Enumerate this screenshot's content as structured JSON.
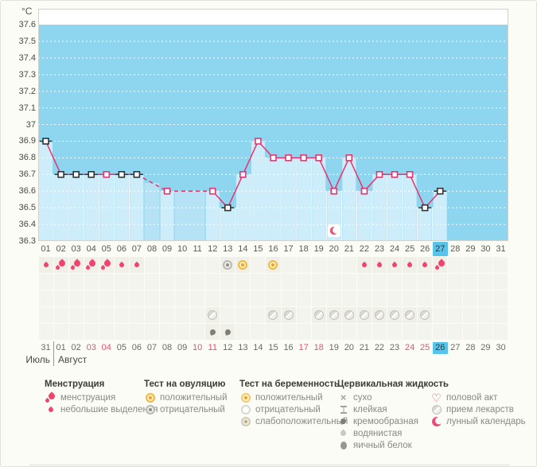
{
  "colors": {
    "chart_bg": "#8ED5EF",
    "bar": "#CDEDFB",
    "bar_interpolated": "#B5E2F4",
    "bar_separator": "#EFF9FE",
    "grid": "#FFFFFF",
    "line": "#E8336E",
    "marker_black": "#333333",
    "selected_bg": "#58C4EA",
    "weekend_text": "#E8506E",
    "accent_pink": "#F0436E",
    "plot_border": "#D2D2CC"
  },
  "chart_data": {
    "type": "line",
    "title": "",
    "xlabel": "",
    "ylabel": "°C",
    "ylim": [
      36.3,
      37.6
    ],
    "ytick_step": 0.1,
    "grid": "dotted-white-horizontal",
    "yticks": [
      "37.6",
      "37.5",
      "37.4",
      "37.3",
      "37.2",
      "37.1",
      "37",
      "36.9",
      "36.8",
      "36.7",
      "36.6",
      "36.5",
      "36.4",
      "36.3"
    ],
    "cycle_days": [
      "01",
      "02",
      "03",
      "04",
      "05",
      "06",
      "07",
      "08",
      "09",
      "10",
      "11",
      "12",
      "13",
      "14",
      "15",
      "16",
      "17",
      "18",
      "19",
      "20",
      "21",
      "22",
      "23",
      "24",
      "25",
      "26",
      "27",
      "28",
      "29",
      "30",
      "31"
    ],
    "selected_cycle_day": "27",
    "temps": [
      {
        "d": 1,
        "t": 36.9,
        "m": "black"
      },
      {
        "d": 2,
        "t": 36.7,
        "m": "black"
      },
      {
        "d": 3,
        "t": 36.7,
        "m": "black"
      },
      {
        "d": 4,
        "t": 36.7,
        "m": "black"
      },
      {
        "d": 5,
        "t": 36.7,
        "m": "pink"
      },
      {
        "d": 6,
        "t": 36.7,
        "m": "black"
      },
      {
        "d": 7,
        "t": 36.7,
        "m": "black"
      },
      {
        "d": 8,
        "t": null,
        "m": null
      },
      {
        "d": 9,
        "t": 36.6,
        "m": "pink"
      },
      {
        "d": 10,
        "t": null,
        "m": null
      },
      {
        "d": 11,
        "t": null,
        "m": null
      },
      {
        "d": 12,
        "t": 36.6,
        "m": "pink"
      },
      {
        "d": 13,
        "t": 36.5,
        "m": "black"
      },
      {
        "d": 14,
        "t": 36.7,
        "m": "pink"
      },
      {
        "d": 15,
        "t": 36.9,
        "m": "pink"
      },
      {
        "d": 16,
        "t": 36.8,
        "m": "pink"
      },
      {
        "d": 17,
        "t": 36.8,
        "m": "pink"
      },
      {
        "d": 18,
        "t": 36.8,
        "m": "pink"
      },
      {
        "d": 19,
        "t": 36.8,
        "m": "pink"
      },
      {
        "d": 20,
        "t": 36.6,
        "m": "pink"
      },
      {
        "d": 21,
        "t": 36.8,
        "m": "pink"
      },
      {
        "d": 22,
        "t": 36.6,
        "m": "pink"
      },
      {
        "d": 23,
        "t": 36.7,
        "m": "pink"
      },
      {
        "d": 24,
        "t": 36.7,
        "m": "pink"
      },
      {
        "d": 25,
        "t": 36.7,
        "m": "pink"
      },
      {
        "d": 26,
        "t": 36.5,
        "m": "black"
      },
      {
        "d": 27,
        "t": 36.6,
        "m": "black"
      },
      {
        "d": 28,
        "t": null,
        "m": null
      },
      {
        "d": 29,
        "t": null,
        "m": null
      },
      {
        "d": 30,
        "t": null,
        "m": null
      },
      {
        "d": 31,
        "t": null,
        "m": null
      }
    ],
    "events": {
      "menstruation_heavy": [
        2,
        3,
        4,
        5,
        27
      ],
      "menstruation_light": [
        1,
        6,
        7,
        22,
        23,
        24,
        25,
        26
      ],
      "ovulation_test_positive": [
        14,
        16
      ],
      "ovulation_test_negative": [
        13
      ],
      "medicine": [
        12,
        16,
        17,
        19,
        20,
        21,
        22,
        23,
        24,
        25,
        26
      ],
      "cervical_creamy": [
        12,
        13
      ],
      "lunar_calendar": [
        20
      ]
    },
    "calendar": {
      "month_left": "Июль",
      "month_right": "Август",
      "dates": [
        {
          "d": "31"
        },
        {
          "d": "01"
        },
        {
          "d": "02"
        },
        {
          "d": "03",
          "wk": true
        },
        {
          "d": "04",
          "wk": true
        },
        {
          "d": "05"
        },
        {
          "d": "06"
        },
        {
          "d": "07"
        },
        {
          "d": "08"
        },
        {
          "d": "09"
        },
        {
          "d": "10",
          "wk": true
        },
        {
          "d": "11",
          "wk": true
        },
        {
          "d": "12"
        },
        {
          "d": "13"
        },
        {
          "d": "14"
        },
        {
          "d": "15"
        },
        {
          "d": "16"
        },
        {
          "d": "17",
          "wk": true
        },
        {
          "d": "18",
          "wk": true
        },
        {
          "d": "19"
        },
        {
          "d": "20"
        },
        {
          "d": "21"
        },
        {
          "d": "22"
        },
        {
          "d": "23"
        },
        {
          "d": "24",
          "wk": true
        },
        {
          "d": "25",
          "wk": true
        },
        {
          "d": "26",
          "sel": true
        },
        {
          "d": "27"
        },
        {
          "d": "28"
        },
        {
          "d": "29"
        },
        {
          "d": "30"
        }
      ]
    }
  },
  "legend": {
    "columns": [
      {
        "header": "Менструация",
        "items": [
          {
            "icon": "drop-big",
            "label": "менструация"
          },
          {
            "icon": "drop-small",
            "label": "небольшие выделения"
          }
        ]
      },
      {
        "header": "Тест на овуляцию",
        "items": [
          {
            "icon": "ovu-pos",
            "label": "положительный"
          },
          {
            "icon": "ovu-neg",
            "label": "отрицательный"
          }
        ]
      },
      {
        "header": "Тест на беременность",
        "items": [
          {
            "icon": "preg-pos",
            "label": "положительный"
          },
          {
            "icon": "preg-neg",
            "label": "отрицательный"
          },
          {
            "icon": "preg-weak",
            "label": "слабоположительный"
          }
        ]
      },
      {
        "header": "Цервикальная жидкость",
        "items": [
          {
            "icon": "dry",
            "label": "сухо"
          },
          {
            "icon": "sticky",
            "label": "клейкая"
          },
          {
            "icon": "creamy",
            "label": "кремообразная"
          },
          {
            "icon": "watery",
            "label": "водянистая"
          },
          {
            "icon": "eggwhite",
            "label": "яичный белок"
          }
        ]
      },
      {
        "header": "",
        "items": [
          {
            "icon": "heart",
            "label": "половой акт"
          },
          {
            "icon": "pill",
            "label": "прием лекарств"
          },
          {
            "icon": "moon",
            "label": "лунный календарь"
          }
        ]
      }
    ]
  }
}
